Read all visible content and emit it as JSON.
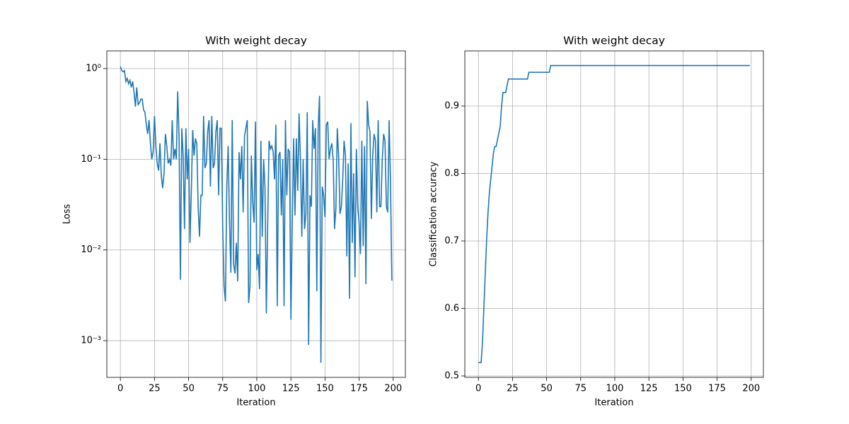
{
  "chart_data": [
    {
      "type": "line",
      "title": "With weight decay",
      "xlabel": "Iteration",
      "ylabel": "Loss",
      "yscale": "log",
      "grid": true,
      "color": "#1f77b4",
      "xlim": [
        -9.95,
        208.95
      ],
      "xticks": [
        0,
        25,
        50,
        75,
        100,
        125,
        150,
        175,
        200
      ],
      "ylim": [
        0.000394,
        1.566
      ],
      "yticks": [
        {
          "value": 1,
          "label": "10⁰"
        },
        {
          "value": 0.1,
          "label": "10⁻¹"
        },
        {
          "value": 0.01,
          "label": "10⁻²"
        },
        {
          "value": 0.001,
          "label": "10⁻³"
        }
      ],
      "x": [
        0,
        1,
        2,
        3,
        4,
        5,
        6,
        7,
        8,
        9,
        10,
        11,
        12,
        13,
        14,
        15,
        16,
        17,
        18,
        19,
        20,
        21,
        22,
        23,
        24,
        25,
        26,
        27,
        28,
        29,
        30,
        31,
        32,
        33,
        34,
        35,
        36,
        37,
        38,
        39,
        40,
        41,
        42,
        43,
        44,
        45,
        46,
        47,
        48,
        49,
        50,
        51,
        52,
        53,
        54,
        55,
        56,
        57,
        58,
        59,
        60,
        61,
        62,
        63,
        64,
        65,
        66,
        67,
        68,
        69,
        70,
        71,
        72,
        73,
        74,
        75,
        76,
        77,
        78,
        79,
        80,
        81,
        82,
        83,
        84,
        85,
        86,
        87,
        88,
        89,
        90,
        91,
        92,
        93,
        94,
        95,
        96,
        97,
        98,
        99,
        100,
        101,
        102,
        103,
        104,
        105,
        106,
        107,
        108,
        109,
        110,
        111,
        112,
        113,
        114,
        115,
        116,
        117,
        118,
        119,
        120,
        121,
        122,
        123,
        124,
        125,
        126,
        127,
        128,
        129,
        130,
        131,
        132,
        133,
        134,
        135,
        136,
        137,
        138,
        139,
        140,
        141,
        142,
        143,
        144,
        145,
        146,
        147,
        148,
        149,
        150,
        151,
        152,
        153,
        154,
        155,
        156,
        157,
        158,
        159,
        160,
        161,
        162,
        163,
        164,
        165,
        166,
        167,
        168,
        169,
        170,
        171,
        172,
        173,
        174,
        175,
        176,
        177,
        178,
        179,
        180,
        181,
        182,
        183,
        184,
        185,
        186,
        187,
        188,
        189,
        190,
        191,
        192,
        193,
        194,
        195,
        196,
        197,
        198,
        199
      ],
      "values": [
        1.05,
        0.95,
        0.92,
        0.95,
        0.72,
        0.78,
        0.68,
        0.74,
        0.62,
        0.72,
        0.55,
        0.38,
        0.62,
        0.4,
        0.42,
        0.46,
        0.46,
        0.35,
        0.33,
        0.24,
        0.19,
        0.27,
        0.15,
        0.1,
        0.12,
        0.3,
        0.14,
        0.09,
        0.075,
        0.15,
        0.065,
        0.048,
        0.07,
        0.19,
        0.14,
        0.09,
        0.1,
        0.085,
        0.27,
        0.1,
        0.13,
        0.1,
        0.56,
        0.18,
        0.0047,
        0.22,
        0.11,
        0.017,
        0.22,
        0.06,
        0.13,
        0.012,
        0.045,
        0.21,
        0.11,
        0.17,
        0.15,
        0.03,
        0.014,
        0.04,
        0.04,
        0.3,
        0.08,
        0.09,
        0.2,
        0.27,
        0.05,
        0.3,
        0.08,
        0.09,
        0.2,
        0.27,
        0.04,
        0.22,
        0.22,
        0.018,
        0.004,
        0.0027,
        0.05,
        0.14,
        0.02,
        0.0056,
        0.27,
        0.007,
        0.0055,
        0.012,
        0.0045,
        0.12,
        0.06,
        0.14,
        0.026,
        0.18,
        0.22,
        0.27,
        0.0026,
        0.004,
        0.11,
        0.034,
        0.02,
        0.26,
        0.006,
        0.009,
        0.0037,
        0.16,
        0.014,
        0.1,
        0.05,
        0.002,
        0.02,
        0.16,
        0.13,
        0.14,
        0.12,
        0.06,
        0.24,
        0.0024,
        0.11,
        0.12,
        0.024,
        0.1,
        0.0024,
        0.27,
        0.04,
        0.13,
        0.12,
        0.0017,
        0.02,
        0.17,
        0.024,
        0.17,
        0.045,
        0.32,
        0.1,
        0.014,
        0.1,
        0.017,
        0.025,
        0.33,
        0.0009,
        0.04,
        0.03,
        0.27,
        0.13,
        0.22,
        0.0035,
        0.22,
        0.5,
        0.00057,
        0.05,
        0.04,
        0.023,
        0.24,
        0.26,
        0.1,
        0.13,
        0.15,
        0.1,
        0.017,
        0.029,
        0.22,
        0.11,
        0.025,
        0.03,
        0.06,
        0.16,
        0.11,
        0.0085,
        0.09,
        0.0029,
        0.25,
        0.012,
        0.07,
        0.005,
        0.13,
        0.03,
        0.02,
        0.009,
        0.16,
        0.011,
        0.14,
        0.0042,
        0.44,
        0.24,
        0.2,
        0.022,
        0.11,
        0.19,
        0.16,
        0.026,
        0.27,
        0.03,
        0.03,
        0.1,
        0.19,
        0.16,
        0.03,
        0.026,
        0.27,
        0.06,
        0.0046
      ]
    },
    {
      "type": "line",
      "title": "With weight decay",
      "xlabel": "Iteration",
      "ylabel": "Classification accuracy",
      "yscale": "linear",
      "grid": true,
      "color": "#1f77b4",
      "xlim": [
        -9.95,
        208.95
      ],
      "xticks": [
        0,
        25,
        50,
        75,
        100,
        125,
        150,
        175,
        200
      ],
      "ylim": [
        0.4979,
        0.9817
      ],
      "yticks": [
        0.5,
        0.6,
        0.7,
        0.8,
        0.9
      ],
      "x": [
        0,
        2,
        3,
        4,
        5,
        6,
        7,
        8,
        9,
        10,
        11,
        12,
        13,
        14,
        15,
        16,
        17,
        18,
        20,
        21,
        22,
        36,
        37,
        52,
        53,
        199
      ],
      "values": [
        0.52,
        0.52,
        0.55,
        0.6,
        0.65,
        0.7,
        0.74,
        0.77,
        0.79,
        0.81,
        0.83,
        0.84,
        0.84,
        0.85,
        0.86,
        0.87,
        0.9,
        0.92,
        0.92,
        0.93,
        0.94,
        0.94,
        0.95,
        0.95,
        0.96,
        0.96
      ]
    }
  ]
}
